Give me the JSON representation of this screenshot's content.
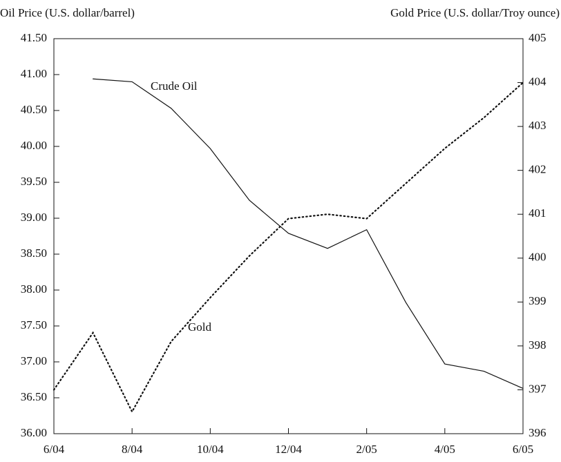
{
  "chart_data": {
    "type": "line",
    "y_label": "Oil Price (U.S. dollar/barrel)",
    "y2_label": "Gold Price (U.S. dollar/Troy ounce)",
    "categories": [
      "6/04",
      null,
      "8/04",
      null,
      "10/04",
      null,
      "12/04",
      null,
      "2/05",
      null,
      "4/05",
      null,
      "6/05"
    ],
    "ylim": [
      36,
      41.5
    ],
    "yticks": [
      {
        "value": 36,
        "label": "36.00"
      },
      {
        "value": 36.5,
        "label": "36.50"
      },
      {
        "value": 37,
        "label": "37.00"
      },
      {
        "value": 37.5,
        "label": "37.50"
      },
      {
        "value": 38,
        "label": "38.00"
      },
      {
        "value": 38.5,
        "label": "38.50"
      },
      {
        "value": 39,
        "label": "39.00"
      },
      {
        "value": 39.5,
        "label": "39.50"
      },
      {
        "value": 40,
        "label": "40.00"
      },
      {
        "value": 40.5,
        "label": "40.50"
      },
      {
        "value": 41,
        "label": "41.00"
      },
      {
        "value": 41.5,
        "label": "41.50"
      }
    ],
    "y2lim": [
      396,
      405
    ],
    "y2ticks": [
      396,
      397,
      398,
      399,
      400,
      401,
      402,
      403,
      404,
      405
    ],
    "series": [
      {
        "name": "Crude Oil",
        "color": "#111111",
        "dash": "solid",
        "values": [
          null,
          40.94,
          40.9,
          40.53,
          39.97,
          39.25,
          38.79,
          38.58,
          38.84,
          37.83,
          36.97,
          36.87,
          36.63
        ]
      },
      {
        "name": "Gold",
        "color": "#111111",
        "dash": "dotted",
        "axis": "y2",
        "values": [
          397.0,
          398.3,
          396.5,
          398.1,
          399.1,
          400.05,
          400.9,
          401.0,
          400.9,
          401.7,
          402.5,
          403.2,
          404.0
        ]
      }
    ]
  }
}
